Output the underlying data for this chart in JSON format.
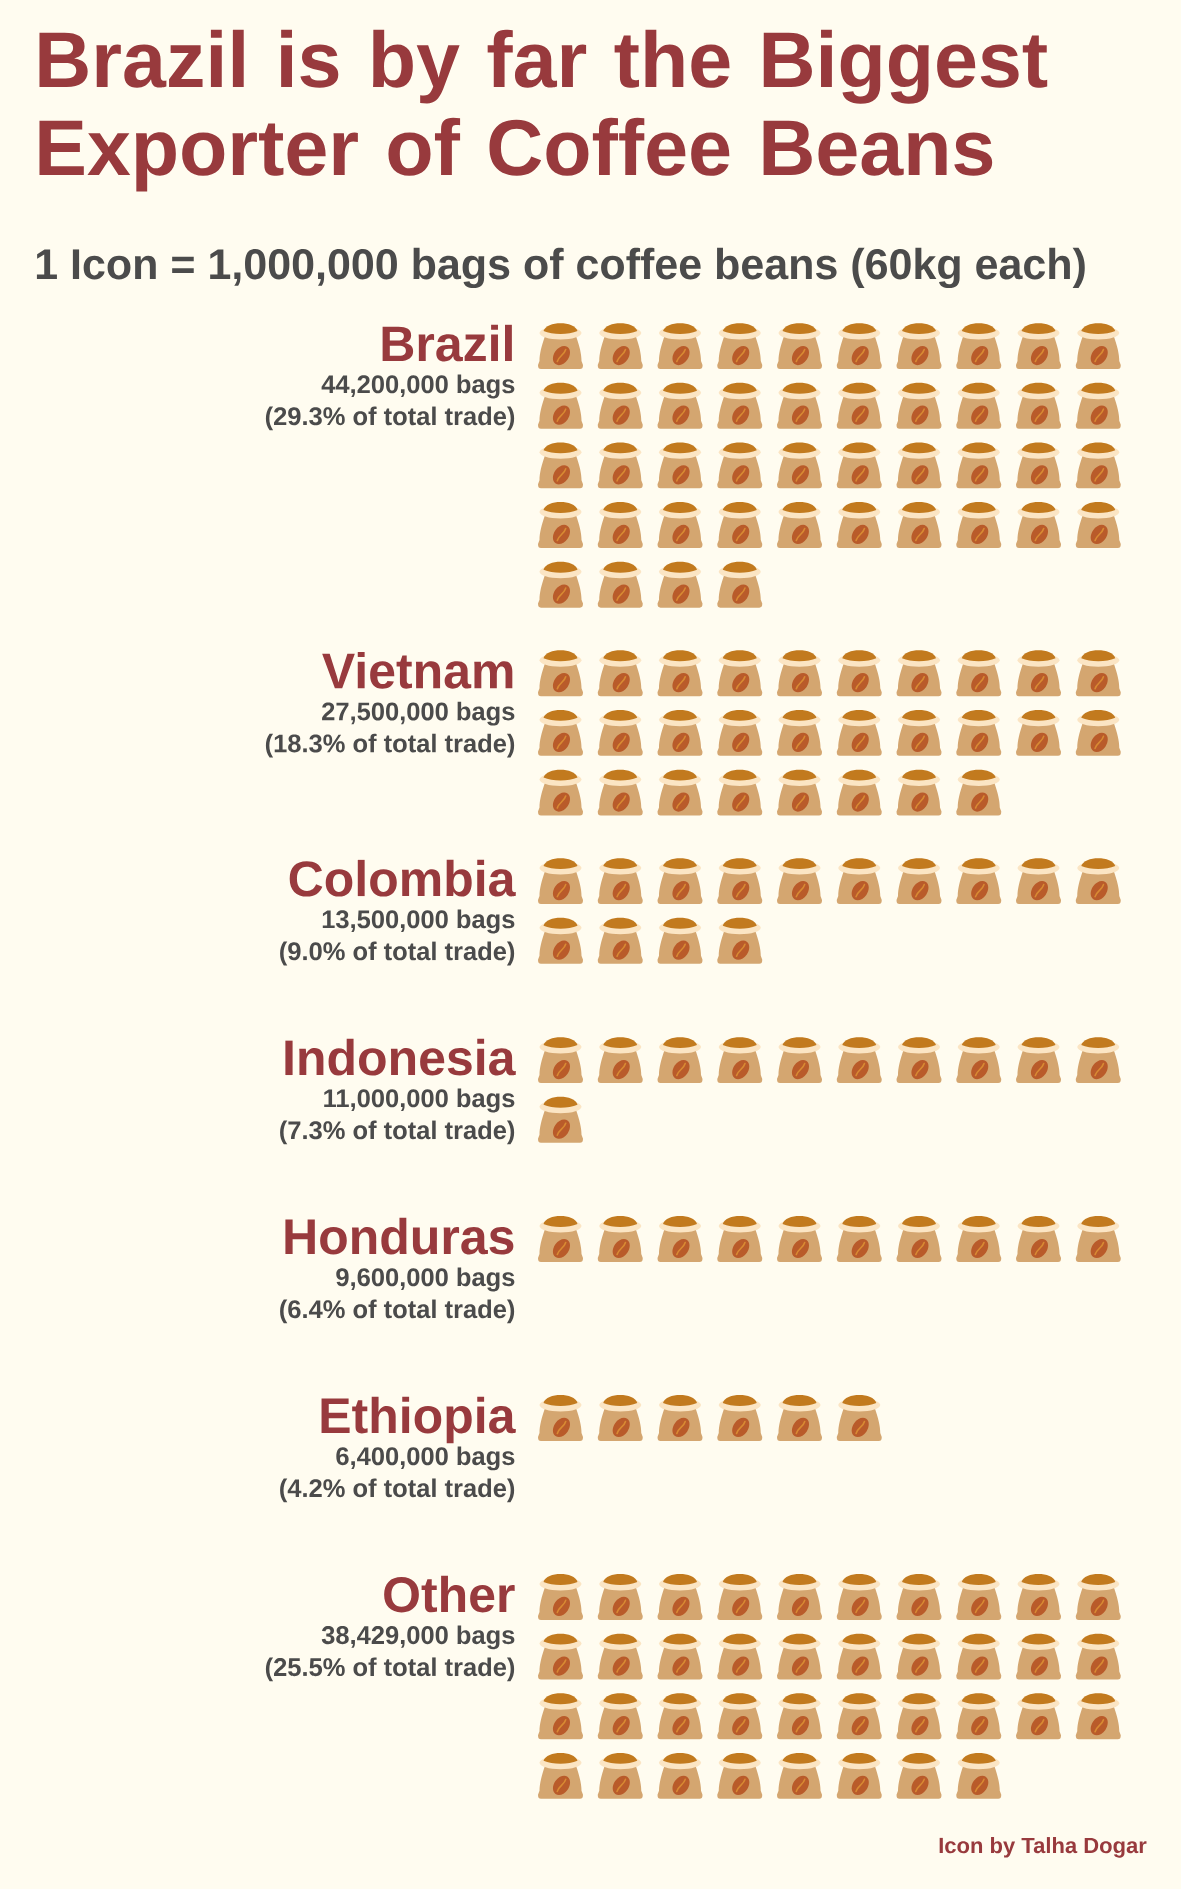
{
  "chart_data": {
    "type": "other",
    "title": "Brazil is by far the Biggest Exporter of Coffee Beans",
    "subtitle": "1 Icon = 1,000,000 bags of coffee beans (60kg each)",
    "categories": [
      "Brazil",
      "Vietnam",
      "Colombia",
      "Indonesia",
      "Honduras",
      "Ethiopia",
      "Other"
    ],
    "series": [
      {
        "color": "#d4a670",
        "values": [
          44200000,
          27500000,
          13500000,
          11000000,
          9600000,
          6400000,
          38429000
        ],
        "value_labels": [
          "44,200,000 bags",
          "27,500,000 bags",
          "13,500,000 bags",
          "11,000,000 bags",
          "9,600,000 bags",
          "6,400,000 bags",
          "38,429,000 bags"
        ]
      }
    ],
    "annotations": [
      {
        "text": "(29.3% of total trade)",
        "y": "Brazil"
      },
      {
        "text": "(18.3% of total trade)",
        "y": "Vietnam"
      },
      {
        "text": "(9.0% of total trade)",
        "y": "Colombia"
      },
      {
        "text": "(7.3% of total trade)",
        "y": "Indonesia"
      },
      {
        "text": "(6.4% of total trade)",
        "y": "Honduras"
      },
      {
        "text": "(4.2% of total trade)",
        "y": "Ethiopia"
      },
      {
        "text": "(25.5% of total trade)",
        "y": "Other"
      },
      "Icon by Talha Dogar"
    ]
  }
}
